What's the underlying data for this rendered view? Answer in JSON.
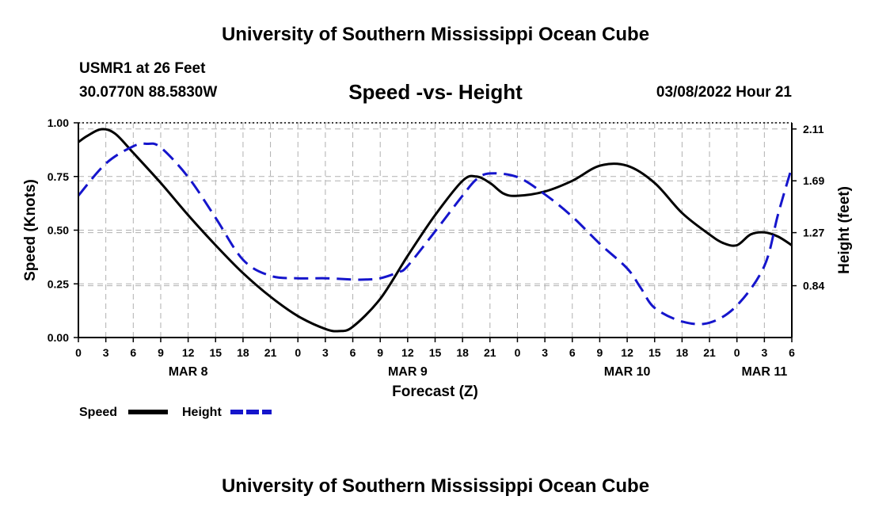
{
  "header": {
    "title": "University of Southern Mississippi Ocean Cube",
    "station": "USMR1 at 26 Feet",
    "coords": "30.0770N  88.5830W",
    "chart_title": "Speed -vs- Height",
    "datetime": "03/08/2022 Hour 21"
  },
  "footer": {
    "title": "University of Southern Mississippi Ocean Cube"
  },
  "colors": {
    "speed": "#000000",
    "height": "#1515cc",
    "grid": "#b0b0b0"
  },
  "chart_data": {
    "type": "line",
    "title": "Speed -vs- Height",
    "xlabel": "Forecast (Z)",
    "ylabel": "Speed (Knots)",
    "y2label": "Height (feet)",
    "x_range_hours": [
      0,
      78
    ],
    "ylim": [
      0,
      1
    ],
    "y2lim": [
      0.42,
      2.16
    ],
    "x_ticks": [
      0,
      3,
      6,
      9,
      12,
      15,
      18,
      21,
      24,
      27,
      30,
      33,
      36,
      39,
      42,
      45,
      48,
      51,
      54,
      57,
      60,
      63,
      66,
      69,
      72,
      75,
      78
    ],
    "x_tick_labels": [
      "0",
      "3",
      "6",
      "9",
      "12",
      "15",
      "18",
      "21",
      "0",
      "3",
      "6",
      "9",
      "12",
      "15",
      "18",
      "21",
      "0",
      "3",
      "6",
      "9",
      "12",
      "15",
      "18",
      "21",
      "0",
      "3",
      "6"
    ],
    "day_labels": [
      {
        "label": "MAR 8",
        "hour": 12
      },
      {
        "label": "MAR 9",
        "hour": 36
      },
      {
        "label": "MAR 10",
        "hour": 60
      },
      {
        "label": "MAR 11",
        "hour": 75
      }
    ],
    "y_ticks": [
      0.0,
      0.25,
      0.5,
      0.75,
      1.0
    ],
    "y_tick_labels": [
      "0.00",
      "0.25",
      "0.50",
      "0.75",
      "1.00"
    ],
    "y2_ticks": [
      0.84,
      1.27,
      1.69,
      2.11
    ],
    "y2_tick_labels": [
      "0.84",
      "1.27",
      "1.69",
      "2.11"
    ],
    "grid": true,
    "legend": "bottom-left",
    "series": [
      {
        "name": "Speed",
        "axis": "left",
        "style": "solid",
        "x": [
          0,
          1,
          2.5,
          4,
          6,
          9,
          12,
          15,
          18,
          21,
          24,
          27,
          28.5,
          30,
          33,
          36,
          39,
          42,
          43.5,
          45,
          46.5,
          48,
          51,
          54,
          57,
          60,
          63,
          66,
          69,
          70.5,
          72,
          73.5,
          75,
          76.5,
          78
        ],
        "values": [
          0.91,
          0.94,
          0.97,
          0.95,
          0.86,
          0.72,
          0.57,
          0.43,
          0.3,
          0.19,
          0.1,
          0.04,
          0.03,
          0.05,
          0.18,
          0.38,
          0.57,
          0.73,
          0.75,
          0.72,
          0.67,
          0.66,
          0.68,
          0.73,
          0.8,
          0.8,
          0.72,
          0.58,
          0.48,
          0.44,
          0.43,
          0.48,
          0.49,
          0.47,
          0.43
        ]
      },
      {
        "name": "Height",
        "axis": "right",
        "style": "dashed",
        "x": [
          0,
          3,
          6,
          7.5,
          9,
          12,
          15,
          18,
          21,
          24,
          27,
          30,
          31.5,
          33,
          35,
          36,
          39,
          42,
          43.5,
          45,
          48,
          51,
          54,
          57,
          60,
          61.5,
          63,
          66,
          69,
          72,
          75,
          76.5,
          78
        ],
        "values": [
          1.57,
          1.83,
          1.97,
          1.99,
          1.96,
          1.72,
          1.39,
          1.05,
          0.92,
          0.9,
          0.9,
          0.89,
          0.89,
          0.9,
          0.95,
          1.0,
          1.28,
          1.57,
          1.7,
          1.75,
          1.72,
          1.58,
          1.4,
          1.18,
          0.98,
          0.82,
          0.66,
          0.55,
          0.54,
          0.68,
          1.0,
          1.42,
          1.8
        ]
      }
    ]
  }
}
